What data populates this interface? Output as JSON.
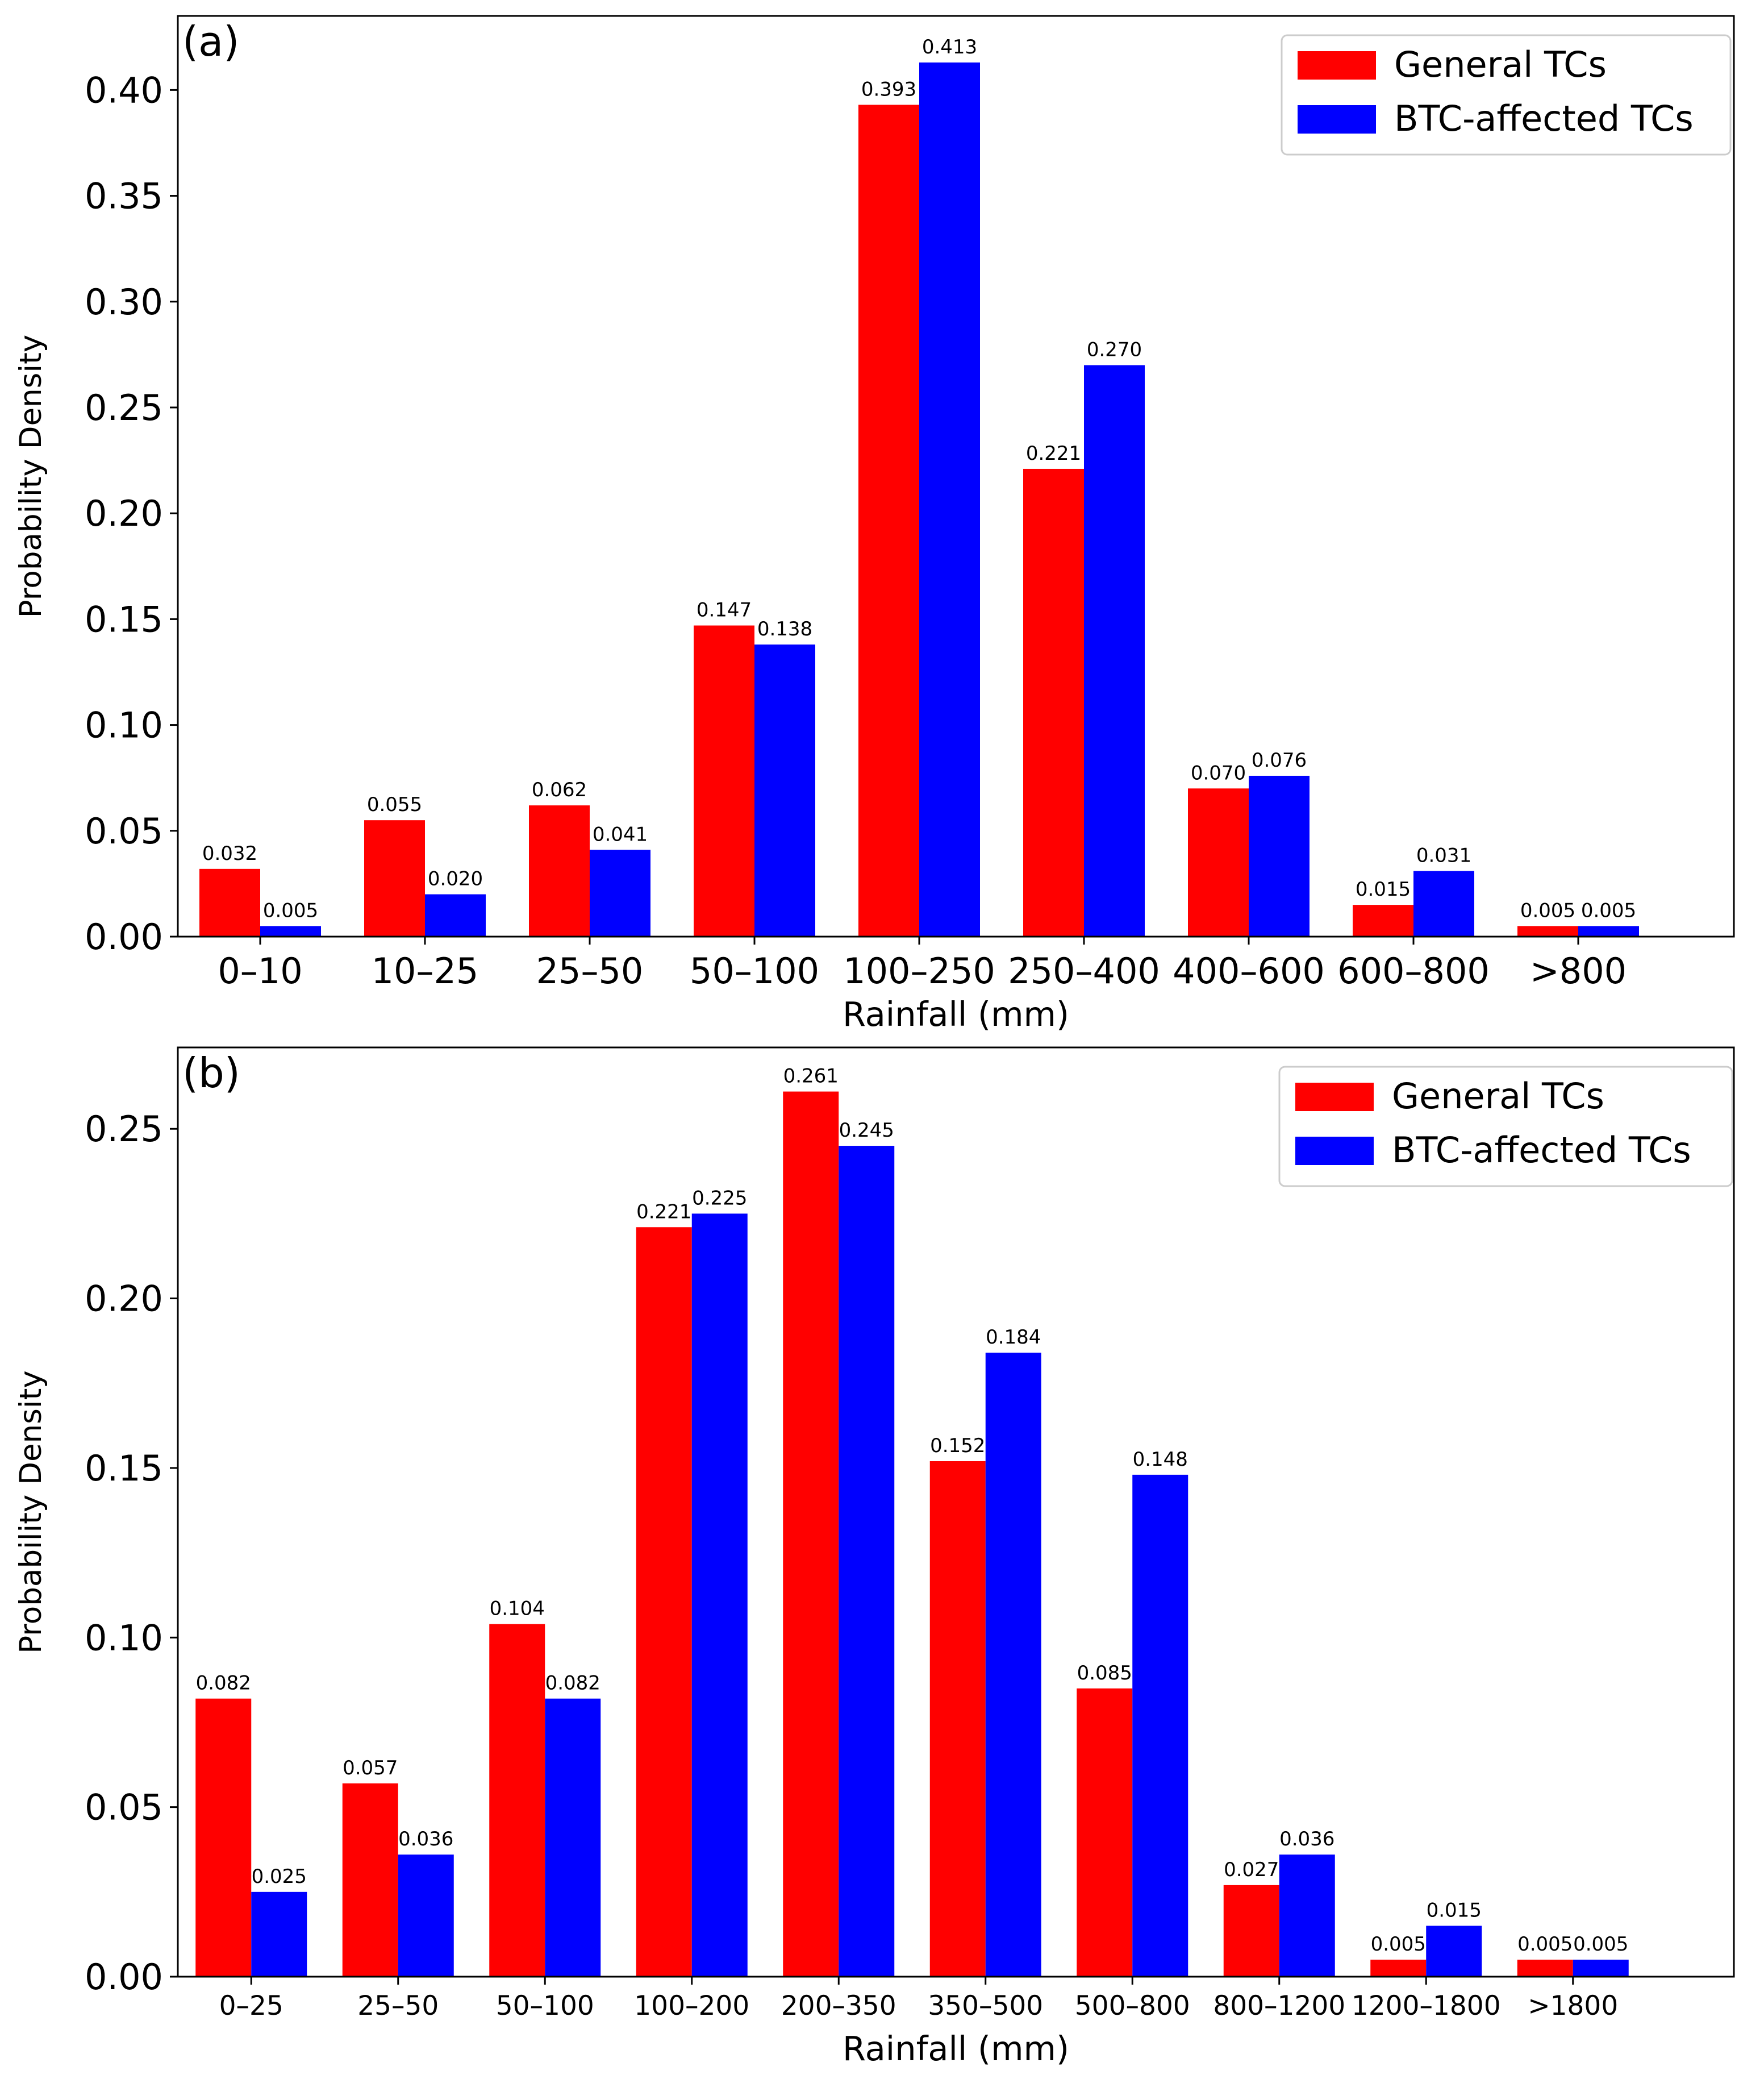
{
  "chart_data": [
    {
      "type": "bar",
      "panel_label": "(a)",
      "xlabel": "Rainfall (mm)",
      "ylabel": "Probability Density",
      "ylim": [
        0,
        0.435
      ],
      "yticks": [
        "0.00",
        "0.05",
        "0.10",
        "0.15",
        "0.20",
        "0.25",
        "0.30",
        "0.35",
        "0.40"
      ],
      "categories": [
        "0–10",
        "10–25",
        "25–50",
        "50–100",
        "100–250",
        "250–400",
        "400–600",
        "600–800",
        ">800"
      ],
      "legend_position": "upper right",
      "series": [
        {
          "name": "General TCs",
          "color": "#ff0000",
          "values": [
            0.032,
            0.055,
            0.062,
            0.147,
            0.393,
            0.221,
            0.07,
            0.015,
            0.005
          ],
          "labels": [
            "0.032",
            "0.055",
            "0.062",
            "0.147",
            "0.393",
            "0.221",
            "0.070",
            "0.015",
            "0.005"
          ]
        },
        {
          "name": "BTC-affected TCs",
          "color": "#0000ff",
          "values": [
            0.005,
            0.02,
            0.041,
            0.138,
            0.413,
            0.27,
            0.076,
            0.031,
            0.005
          ],
          "labels": [
            "0.005",
            "0.020",
            "0.041",
            "0.138",
            "0.413",
            "0.270",
            "0.076",
            "0.031",
            "0.005"
          ]
        }
      ]
    },
    {
      "type": "bar",
      "panel_label": "(b)",
      "xlabel": "Rainfall (mm)",
      "ylabel": "Probability Density",
      "ylim": [
        0,
        0.274
      ],
      "yticks": [
        "0.00",
        "0.05",
        "0.10",
        "0.15",
        "0.20",
        "0.25"
      ],
      "categories": [
        "0–25",
        "25–50",
        "50–100",
        "100–200",
        "200–350",
        "350–500",
        "500–800",
        "800–1200",
        "1200–1800",
        ">1800"
      ],
      "legend_position": "upper right",
      "series": [
        {
          "name": "General TCs",
          "color": "#ff0000",
          "values": [
            0.082,
            0.057,
            0.104,
            0.221,
            0.261,
            0.152,
            0.085,
            0.027,
            0.005,
            0.005
          ],
          "labels": [
            "0.082",
            "0.057",
            "0.104",
            "0.221",
            "0.261",
            "0.152",
            "0.085",
            "0.027",
            "0.005",
            "0.005"
          ]
        },
        {
          "name": "BTC-affected TCs",
          "color": "#0000ff",
          "values": [
            0.025,
            0.036,
            0.082,
            0.225,
            0.245,
            0.184,
            0.148,
            0.036,
            0.015,
            0.005
          ],
          "labels": [
            "0.025",
            "0.036",
            "0.082",
            "0.225",
            "0.245",
            "0.184",
            "0.148",
            "0.036",
            "0.015",
            "0.005"
          ]
        }
      ]
    }
  ]
}
